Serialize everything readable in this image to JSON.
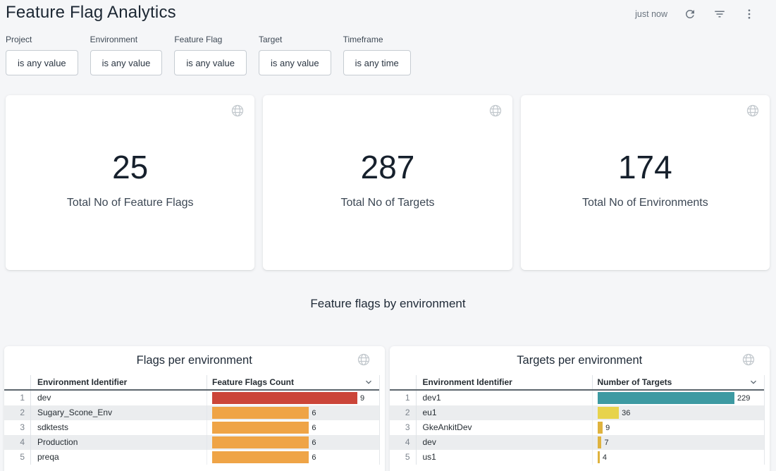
{
  "header": {
    "title": "Feature Flag Analytics",
    "last_refresh": "just now",
    "icons": {
      "refresh": "refresh-icon",
      "filter": "filter-icon",
      "menu": "kebab-menu-icon",
      "tile_badge": "globe-icon",
      "column_menu": "chevron-down-icon"
    }
  },
  "filters": [
    {
      "label": "Project",
      "value": "is any value"
    },
    {
      "label": "Environment",
      "value": "is any value"
    },
    {
      "label": "Feature Flag",
      "value": "is any value"
    },
    {
      "label": "Target",
      "value": "is any value"
    },
    {
      "label": "Timeframe",
      "value": "is any time"
    }
  ],
  "tiles": [
    {
      "value": "25",
      "label": "Total No of Feature Flags"
    },
    {
      "value": "287",
      "label": "Total No of Targets"
    },
    {
      "value": "174",
      "label": "Total No of Environments"
    }
  ],
  "section_title": "Feature flags by environment",
  "chart_data": [
    {
      "type": "table",
      "subtype": "bar-in-table",
      "title": "Flags per environment",
      "columns": [
        "Environment Identifier",
        "Feature Flags Count"
      ],
      "categories": [
        "dev",
        "Sugary_Scone_Env",
        "sdktests",
        "Production",
        "preqa"
      ],
      "values": [
        9,
        6,
        6,
        6,
        6
      ],
      "bar_colors": [
        "#cb4539",
        "#efa446",
        "#efa446",
        "#efa446",
        "#efa446"
      ],
      "bar_axis_max": 9,
      "bar_track_pct": 89,
      "legend": "none",
      "grid": "off"
    },
    {
      "type": "table",
      "subtype": "bar-in-table",
      "title": "Targets per environment",
      "columns": [
        "Environment Identifier",
        "Number of Targets"
      ],
      "categories": [
        "dev1",
        "eu1",
        "GkeAnkitDev",
        "dev",
        "us1"
      ],
      "values": [
        229,
        36,
        9,
        7,
        4
      ],
      "bar_colors": [
        "#3d9aa2",
        "#e7d34c",
        "#dfb33e",
        "#dfb33e",
        "#dfb33e"
      ],
      "bar_axis_max": 229,
      "bar_track_pct": 84,
      "legend": "none",
      "grid": "off"
    }
  ],
  "colors": {
    "page_background": "#f5f6f8",
    "card_background": "#ffffff",
    "title_text": "#1c2733",
    "row_stripe": "#ebedef",
    "header_underline": "#5c666d",
    "icon_gray": "#6a747f",
    "globe_gray": "#c2c8cd"
  }
}
